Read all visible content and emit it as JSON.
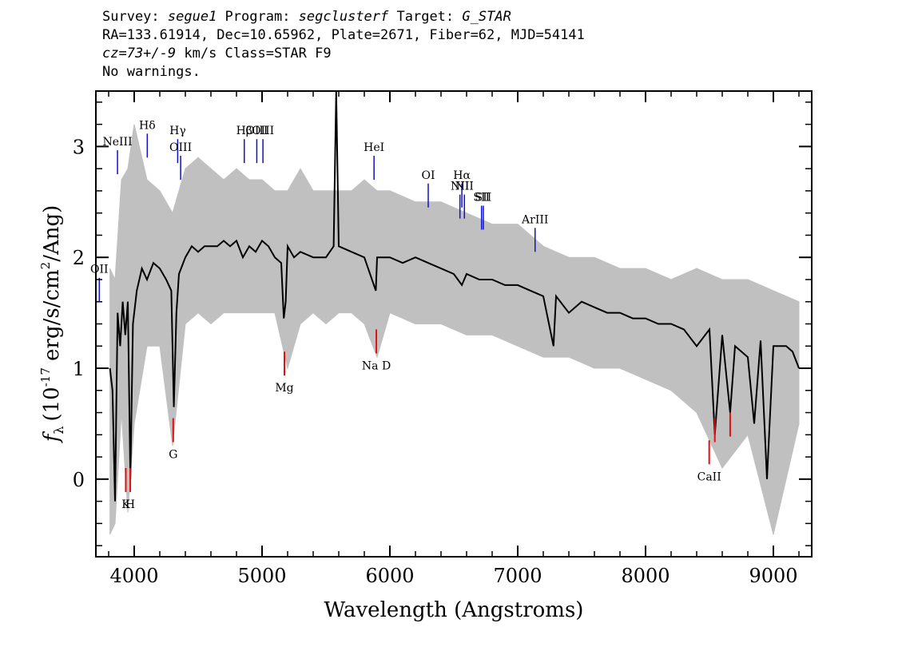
{
  "header": {
    "line1": {
      "survey_label": "Survey: ",
      "survey": "segue1",
      "program_label": " Program: ",
      "program": "segclusterf",
      "target_label": " Target: ",
      "target": "G_STAR"
    },
    "line2": "RA=133.61914, Dec=10.65962, Plate=2671, Fiber=62, MJD=54141",
    "line3": {
      "cz": "cz=73+/-9",
      "rest": " km/s Class=STAR F9"
    },
    "line4": "No warnings."
  },
  "colors": {
    "flux": "#000000",
    "error": "#c0c0c0",
    "emission": "#1010c8",
    "absorption": "#e01010",
    "axes": "#000000"
  },
  "chart_data": {
    "type": "line",
    "xlabel": "Wavelength (Angstroms)",
    "ylabel": "f_λ (10^-17 erg/s/cm^2/Ang)",
    "ylabel_parts": {
      "f": "f",
      "sub": "λ",
      "pre": "(10",
      "exp1": "-17",
      "mid": " erg/s/cm",
      "exp2": "2",
      "post": "/Ang)"
    },
    "xlim": [
      3700,
      9300
    ],
    "ylim": [
      -0.7,
      3.5
    ],
    "xticks": [
      4000,
      5000,
      6000,
      7000,
      8000,
      9000
    ],
    "yticks": [
      0,
      1,
      2,
      3
    ],
    "series": [
      {
        "role": "flux",
        "x": [
          3810,
          3830,
          3850,
          3870,
          3890,
          3910,
          3930,
          3950,
          3970,
          3990,
          4020,
          4060,
          4100,
          4150,
          4200,
          4250,
          4290,
          4310,
          4330,
          4350,
          4400,
          4450,
          4500,
          4550,
          4600,
          4650,
          4700,
          4750,
          4800,
          4850,
          4900,
          4950,
          5000,
          5050,
          5100,
          5150,
          5170,
          5185,
          5200,
          5250,
          5300,
          5400,
          5500,
          5560,
          5580,
          5600,
          5700,
          5800,
          5890,
          5900,
          6000,
          6100,
          6200,
          6300,
          6400,
          6500,
          6563,
          6600,
          6700,
          6800,
          6900,
          7000,
          7100,
          7200,
          7280,
          7300,
          7400,
          7500,
          7600,
          7700,
          7800,
          7900,
          8000,
          8100,
          8200,
          8300,
          8400,
          8500,
          8542,
          8600,
          8662,
          8700,
          8800,
          8850,
          8900,
          8950,
          9000,
          9100,
          9150,
          9200
        ],
        "y": [
          1.0,
          0.8,
          -0.2,
          1.5,
          1.2,
          1.6,
          1.3,
          1.6,
          0.0,
          1.4,
          1.7,
          1.9,
          1.8,
          1.95,
          1.9,
          1.8,
          1.7,
          0.65,
          1.5,
          1.85,
          2.0,
          2.1,
          2.05,
          2.1,
          2.1,
          2.1,
          2.15,
          2.1,
          2.15,
          2.0,
          2.1,
          2.05,
          2.15,
          2.1,
          2.0,
          1.95,
          1.45,
          1.6,
          2.1,
          2.0,
          2.05,
          2.0,
          2.0,
          2.1,
          3.5,
          2.1,
          2.05,
          2.0,
          1.7,
          2.0,
          2.0,
          1.95,
          2.0,
          1.95,
          1.9,
          1.85,
          1.75,
          1.85,
          1.8,
          1.8,
          1.75,
          1.75,
          1.7,
          1.65,
          1.2,
          1.65,
          1.5,
          1.6,
          1.55,
          1.5,
          1.5,
          1.45,
          1.45,
          1.4,
          1.4,
          1.35,
          1.2,
          1.35,
          0.4,
          1.3,
          0.6,
          1.2,
          1.1,
          0.5,
          1.25,
          0.0,
          1.2,
          1.2,
          1.15,
          1.0
        ]
      },
      {
        "role": "error",
        "x": [
          3810,
          3850,
          3900,
          3950,
          4000,
          4100,
          4200,
          4300,
          4400,
          4500,
          4600,
          4700,
          4800,
          4900,
          5000,
          5100,
          5200,
          5300,
          5400,
          5500,
          5600,
          5700,
          5800,
          5900,
          6000,
          6200,
          6400,
          6600,
          6800,
          7000,
          7200,
          7400,
          7600,
          7800,
          8000,
          8200,
          8400,
          8600,
          8800,
          9000,
          9200
        ],
        "y_upper": [
          1.9,
          1.8,
          2.7,
          2.8,
          3.2,
          2.7,
          2.6,
          2.4,
          2.8,
          2.9,
          2.8,
          2.7,
          2.8,
          2.7,
          2.7,
          2.6,
          2.6,
          2.8,
          2.6,
          2.6,
          2.6,
          2.6,
          2.7,
          2.6,
          2.6,
          2.5,
          2.5,
          2.4,
          2.3,
          2.3,
          2.1,
          2.0,
          2.0,
          1.9,
          1.9,
          1.8,
          1.9,
          1.8,
          1.8,
          1.7,
          1.6
        ],
        "y_lower": [
          -0.5,
          -0.4,
          0.6,
          -0.3,
          0.5,
          1.2,
          1.2,
          0.3,
          1.4,
          1.5,
          1.4,
          1.5,
          1.5,
          1.5,
          1.5,
          1.5,
          1.0,
          1.4,
          1.5,
          1.4,
          1.5,
          1.5,
          1.4,
          1.1,
          1.5,
          1.4,
          1.4,
          1.3,
          1.3,
          1.2,
          1.1,
          1.1,
          1.0,
          1.0,
          0.9,
          0.8,
          0.6,
          0.1,
          0.4,
          -0.5,
          0.5
        ]
      }
    ],
    "emission_lines": [
      {
        "label": "NeIII",
        "x": 3869,
        "y": 2.75
      },
      {
        "label": "Hδ",
        "x": 4102,
        "y": 2.9
      },
      {
        "label": "Hγ",
        "x": 4340,
        "y": 2.85
      },
      {
        "label": "OIII",
        "x": 4363,
        "y": 2.7
      },
      {
        "label": "Hβ",
        "x": 4861,
        "y": 2.85
      },
      {
        "label": "OIII",
        "x": 4959,
        "y": 2.85
      },
      {
        "label": "OIII",
        "x": 5007,
        "y": 2.85
      },
      {
        "label": "HeI",
        "x": 5876,
        "y": 2.7
      },
      {
        "label": "OI",
        "x": 6300,
        "y": 2.45
      },
      {
        "label": "NII",
        "x": 6548,
        "y": 2.35
      },
      {
        "label": "Hα",
        "x": 6563,
        "y": 2.45
      },
      {
        "label": "NII",
        "x": 6583,
        "y": 2.35
      },
      {
        "label": "SII",
        "x": 6717,
        "y": 2.25
      },
      {
        "label": "SII",
        "x": 6731,
        "y": 2.25
      },
      {
        "label": "ArIII",
        "x": 7136,
        "y": 2.05
      },
      {
        "label": "OII",
        "x": 3727,
        "y": 1.6
      }
    ],
    "absorption_lines": [
      {
        "label": "K",
        "x": 3934,
        "y": 0.1
      },
      {
        "label": "H",
        "x": 3969,
        "y": 0.1
      },
      {
        "label": "G",
        "x": 4305,
        "y": 0.55
      },
      {
        "label": "Mg",
        "x": 5175,
        "y": 1.15
      },
      {
        "label": "Na D",
        "x": 5894,
        "y": 1.35
      },
      {
        "label": "CaII",
        "x": 8498,
        "y": 0.35
      },
      {
        "label": "",
        "x": 8542,
        "y": 0.55
      },
      {
        "label": "",
        "x": 8662,
        "y": 0.6
      }
    ]
  }
}
